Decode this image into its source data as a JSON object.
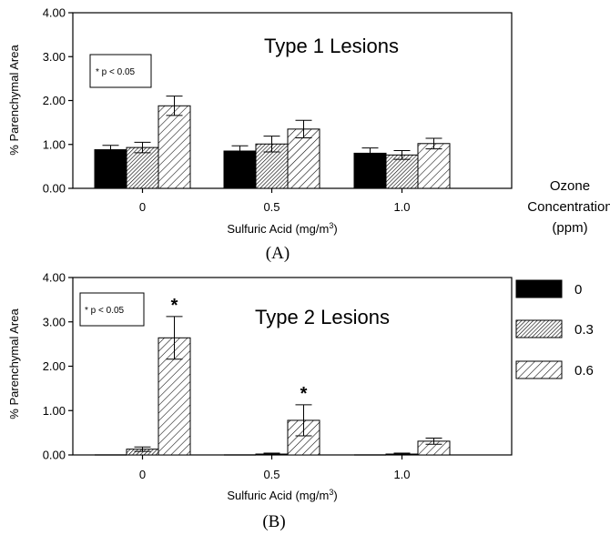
{
  "legend": {
    "title_lines": [
      "Ozone",
      "Concentration",
      "(ppm)"
    ],
    "entries": [
      {
        "label": "0",
        "fill": "solid"
      },
      {
        "label": "0.3",
        "fill": "dense-hatch"
      },
      {
        "label": "0.6",
        "fill": "hatch"
      }
    ]
  },
  "colors": {
    "solid": "#000000",
    "stroke": "#000000",
    "background": "#ffffff"
  },
  "chart_data": [
    {
      "type": "bar",
      "panel_label": "(A)",
      "title": "Type  1  Lesions",
      "annotation": "* p  < 0.05",
      "ylabel": "% Parenchymal Area",
      "xlabel": "Sulfuric Acid  (mg/m",
      "xlabel_sup": "3",
      "xlabel_end": ")",
      "categories": [
        "0",
        "0.5",
        "1.0"
      ],
      "y_ticks": [
        "0.00",
        "1.00",
        "2.00",
        "3.00",
        "4.00"
      ],
      "ylim": [
        0,
        4
      ],
      "series": [
        {
          "name": "0",
          "values": [
            0.88,
            0.85,
            0.8
          ],
          "errors": [
            0.1,
            0.12,
            0.12
          ],
          "fill": "solid"
        },
        {
          "name": "0.3",
          "values": [
            0.93,
            1.01,
            0.76
          ],
          "errors": [
            0.12,
            0.18,
            0.1
          ],
          "fill": "dense-hatch"
        },
        {
          "name": "0.6",
          "values": [
            1.88,
            1.35,
            1.02
          ],
          "errors": [
            0.22,
            0.2,
            0.12
          ],
          "fill": "hatch"
        }
      ],
      "significance": []
    },
    {
      "type": "bar",
      "panel_label": "(B)",
      "title": "Type  2  Lesions",
      "annotation": "* p < 0.05",
      "ylabel": "% Parenchymal Area",
      "xlabel": "Sulfuric Acid  (mg/m",
      "xlabel_sup": "3",
      "xlabel_end": ")",
      "categories": [
        "0",
        "0.5",
        "1.0"
      ],
      "y_ticks": [
        "0.00",
        "1.00",
        "2.00",
        "3.00",
        "4.00"
      ],
      "ylim": [
        0,
        4
      ],
      "series": [
        {
          "name": "0",
          "values": [
            0.0,
            0.0,
            0.0
          ],
          "errors": [
            0,
            0,
            0
          ],
          "fill": "solid"
        },
        {
          "name": "0.3",
          "values": [
            0.13,
            0.02,
            0.02
          ],
          "errors": [
            0.05,
            0.02,
            0.02
          ],
          "fill": "dense-hatch"
        },
        {
          "name": "0.6",
          "values": [
            2.64,
            0.78,
            0.31
          ],
          "errors": [
            0.48,
            0.35,
            0.07
          ],
          "fill": "hatch"
        }
      ],
      "significance": [
        {
          "category": 0,
          "series": 2,
          "mark": "*"
        },
        {
          "category": 1,
          "series": 2,
          "mark": "*"
        }
      ]
    }
  ]
}
